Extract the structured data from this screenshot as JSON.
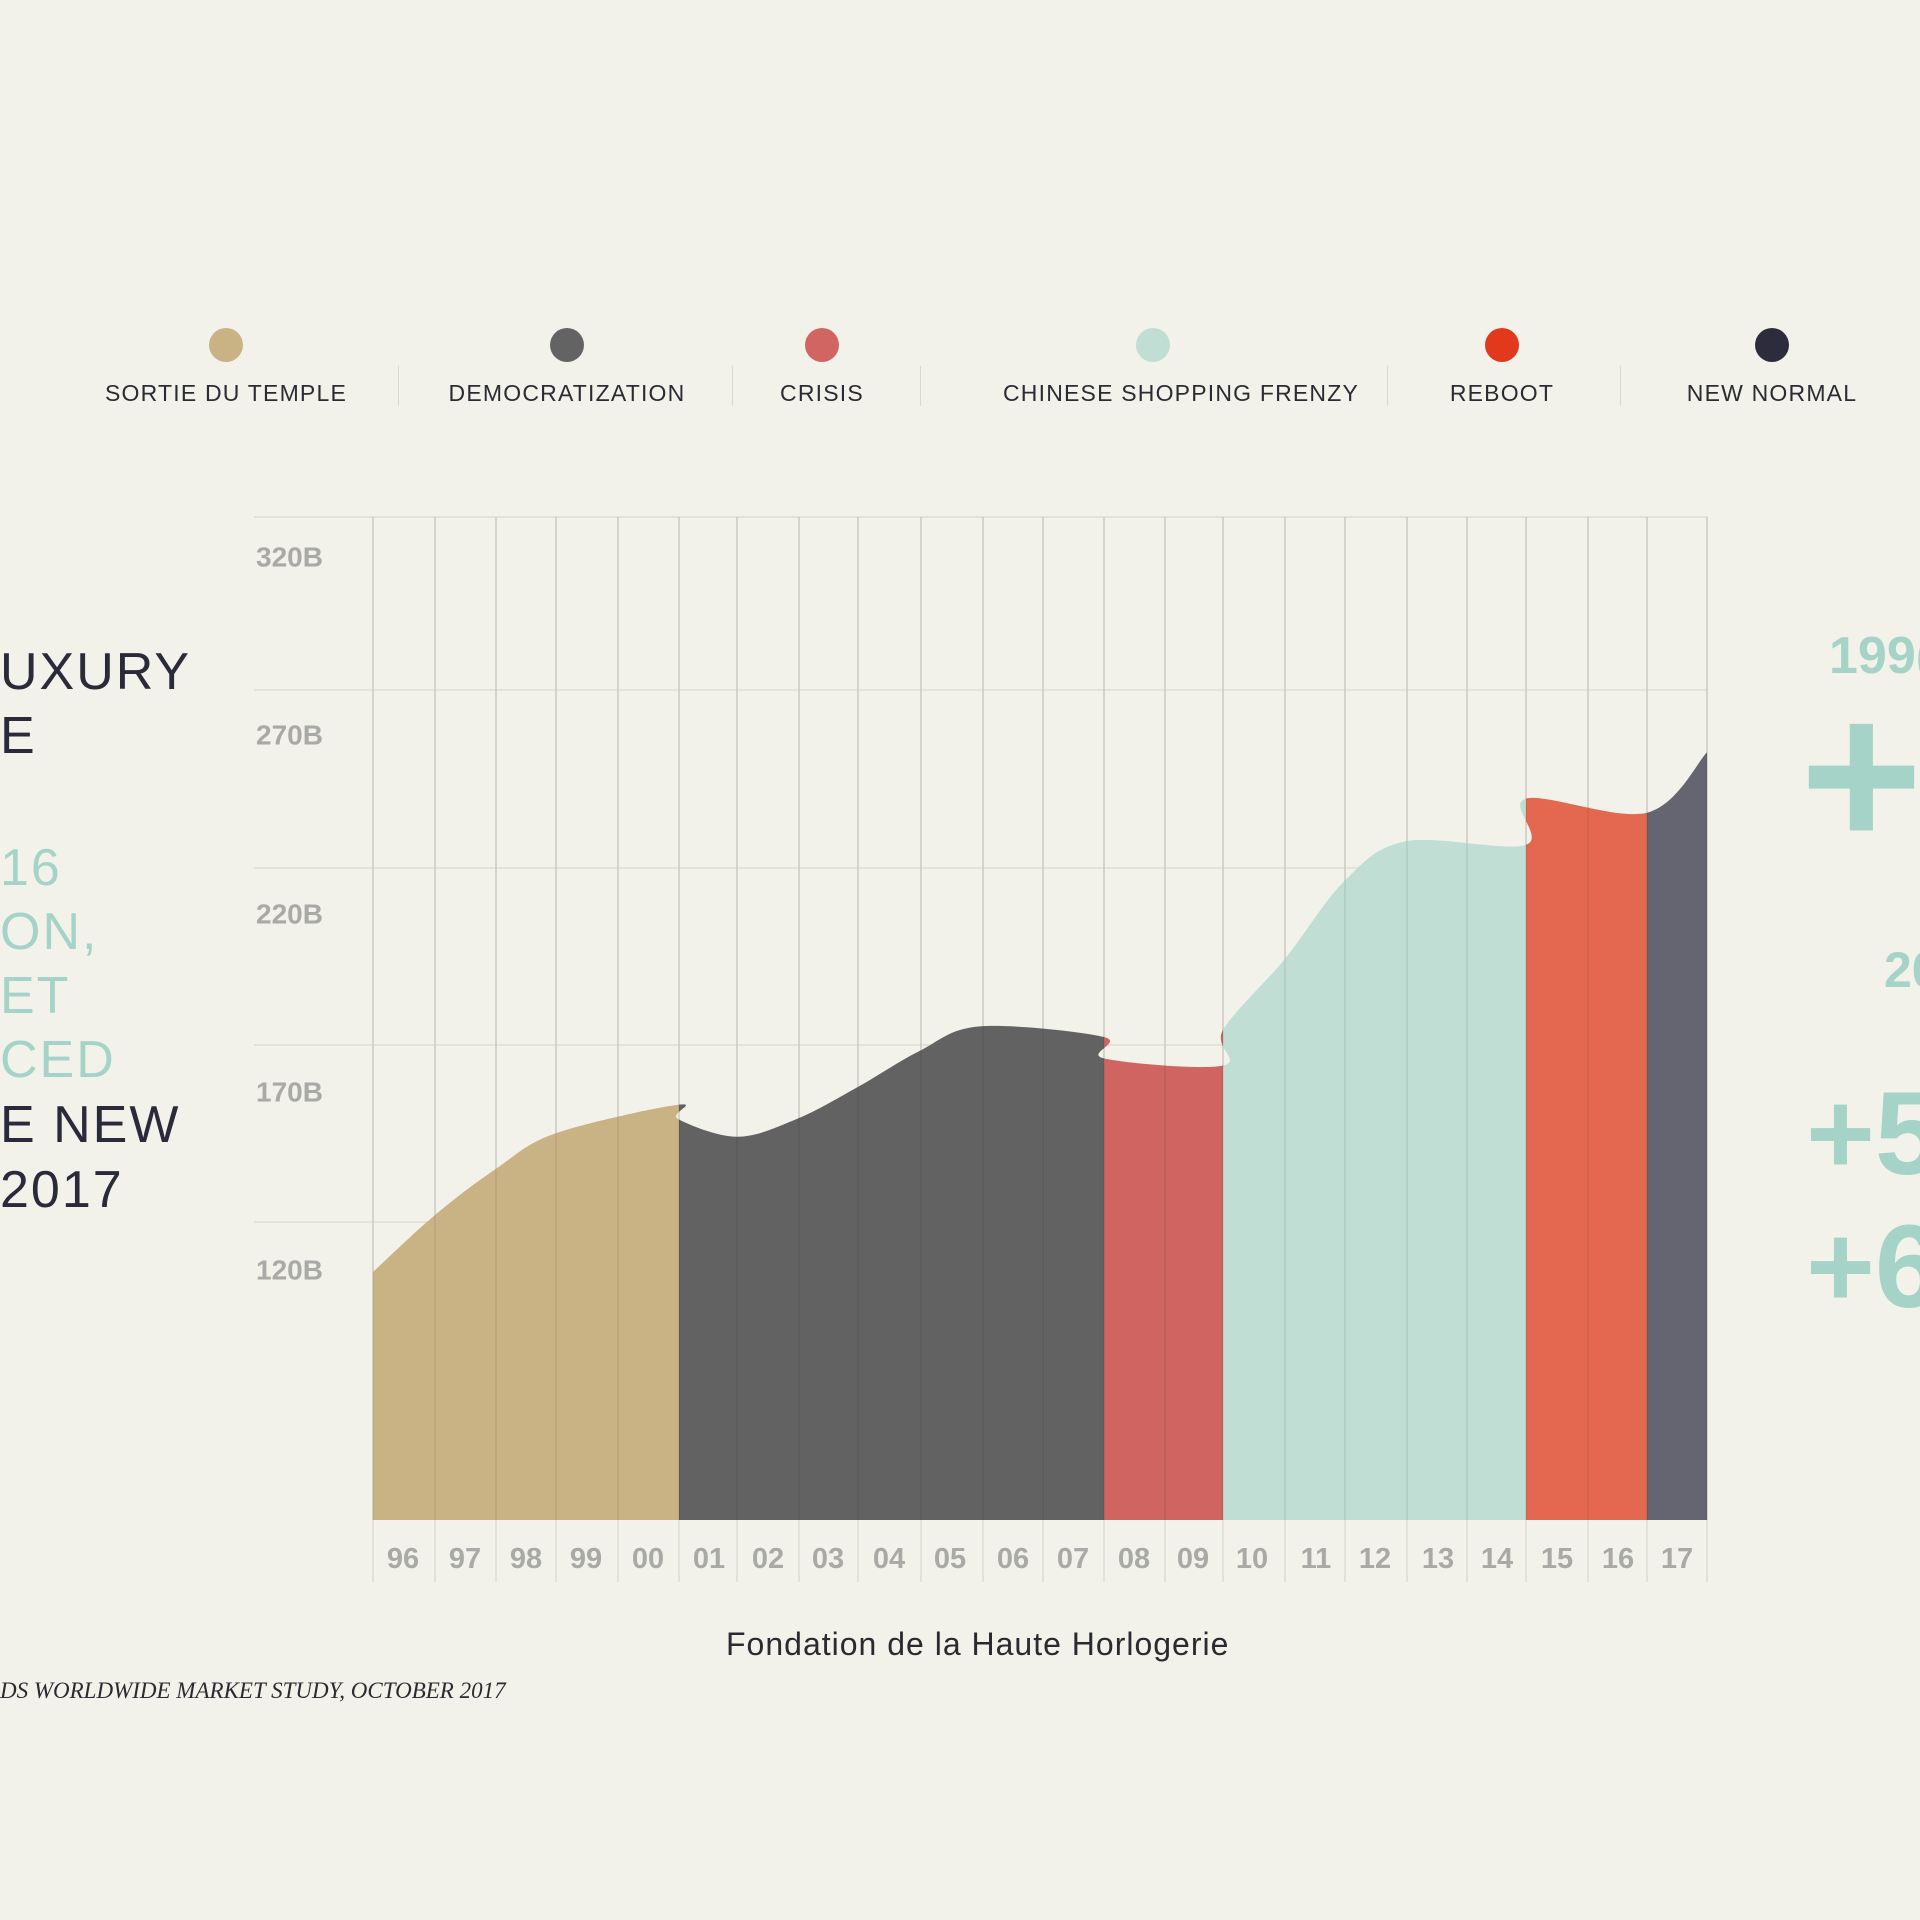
{
  "legend": [
    {
      "label": "SORTIE DU TEMPLE",
      "color": "#c9b384"
    },
    {
      "label": "DEMOCRATIZATION",
      "color": "#636364"
    },
    {
      "label": "CRISIS",
      "color": "#d06562"
    },
    {
      "label": "CHINESE SHOPPING FRENZY",
      "color": "#c1ded5"
    },
    {
      "label": "REBOOT",
      "color": "#e2391c"
    },
    {
      "label": "NEW NORMAL",
      "color": "#2c2c3c"
    }
  ],
  "left_text": [
    {
      "text": "UXURY",
      "tone": "dark"
    },
    {
      "text": "E",
      "tone": "dark"
    },
    {
      "text": "16",
      "tone": "teal"
    },
    {
      "text": "ON,",
      "tone": "teal"
    },
    {
      "text": "ET",
      "tone": "teal"
    },
    {
      "text": "CED",
      "tone": "teal"
    },
    {
      "text": "E NEW",
      "tone": "dark"
    },
    {
      "text": "2017",
      "tone": "dark"
    }
  ],
  "right_text": [
    {
      "text": "199("
    },
    {
      "text": "+"
    },
    {
      "text": "20"
    },
    {
      "text": "+5"
    },
    {
      "text": "+6"
    }
  ],
  "chart_data": {
    "type": "area",
    "x": [
      "96",
      "97",
      "98",
      "99",
      "00",
      "01",
      "02",
      "03",
      "04",
      "05",
      "06",
      "07",
      "08",
      "09",
      "10",
      "11",
      "12",
      "13",
      "14",
      "15",
      "16",
      "17"
    ],
    "values": [
      120,
      136,
      149,
      159,
      167,
      163,
      158,
      163,
      172,
      182,
      189,
      186,
      180,
      178,
      188,
      208,
      230,
      241,
      240,
      253,
      249,
      266
    ],
    "y_ticks": [
      "120B",
      "170B",
      "220B",
      "270B",
      "320B"
    ],
    "ylim": [
      50,
      320
    ],
    "segments": [
      {
        "name": "SORTIE DU TEMPLE",
        "from": "96",
        "to": "00"
      },
      {
        "name": "DEMOCRATIZATION",
        "from": "00",
        "to": "07"
      },
      {
        "name": "CRISIS",
        "from": "07",
        "to": "09"
      },
      {
        "name": "CHINESE SHOPPING FRENZY",
        "from": "09",
        "to": "14"
      },
      {
        "name": "REBOOT",
        "from": "14",
        "to": "16"
      },
      {
        "name": "NEW NORMAL",
        "from": "16",
        "to": "17"
      }
    ],
    "grid": true,
    "colors": {
      "sortie": "#c9b384",
      "democratization": "#626263",
      "crisis": "#cf6461",
      "chinese": "#c1ded5",
      "reboot": "#e4684f",
      "new_normal": "#656571"
    }
  },
  "source": "Fondation de la Haute Horlogerie",
  "footnote": "DS WORLDWIDE MARKET STUDY, OCTOBER 2017"
}
